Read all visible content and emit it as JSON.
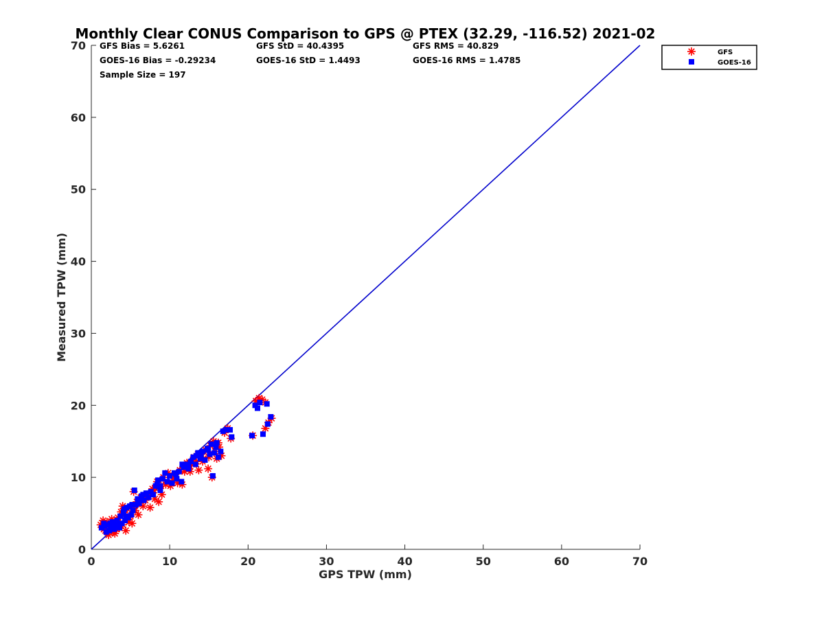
{
  "chart_data": {
    "type": "scatter",
    "title": "Monthly Clear CONUS Comparison to GPS @ PTEX (32.29, -116.52) 2021-02",
    "xlabel": "GPS TPW (mm)",
    "ylabel": "Measured TPW (mm)",
    "xlim": [
      0,
      70
    ],
    "ylim": [
      0,
      70
    ],
    "xticks": [
      0,
      10,
      20,
      30,
      40,
      50,
      60,
      70
    ],
    "yticks": [
      0,
      10,
      20,
      30,
      40,
      50,
      60,
      70
    ],
    "grid": false,
    "legend_position": "top-right outside",
    "stats": {
      "gfs_bias": "GFS Bias = 5.6261",
      "gfs_std": "GFS StD = 40.4395",
      "gfs_rms": "GFS RMS = 40.829",
      "goes_bias": "GOES-16 Bias = -0.29234",
      "goes_std": "GOES-16 StD = 1.4493",
      "goes_rms": "GOES-16 RMS = 1.4785",
      "sample_size": "Sample Size = 197"
    },
    "reference_line": {
      "x": [
        0,
        70
      ],
      "y": [
        0,
        70
      ],
      "color": "#0000cc"
    },
    "series": [
      {
        "name": "GFS",
        "marker": "asterisk",
        "color": "#ff0000",
        "points": [
          [
            1.2,
            3.4
          ],
          [
            1.5,
            4.0
          ],
          [
            1.8,
            2.6
          ],
          [
            2.0,
            3.8
          ],
          [
            2.2,
            2.0
          ],
          [
            2.4,
            3.2
          ],
          [
            2.6,
            4.2
          ],
          [
            2.8,
            2.4
          ],
          [
            3.0,
            3.6
          ],
          [
            3.2,
            2.8
          ],
          [
            3.4,
            4.4
          ],
          [
            3.6,
            3.0
          ],
          [
            3.8,
            5.2
          ],
          [
            4.0,
            3.4
          ],
          [
            4.2,
            4.8
          ],
          [
            4.4,
            2.6
          ],
          [
            4.6,
            5.6
          ],
          [
            4.8,
            3.8
          ],
          [
            5.0,
            4.6
          ],
          [
            5.2,
            3.6
          ],
          [
            5.4,
            8.0
          ],
          [
            5.6,
            5.4
          ],
          [
            5.8,
            6.6
          ],
          [
            6.0,
            4.8
          ],
          [
            6.3,
            7.2
          ],
          [
            6.6,
            6.0
          ],
          [
            6.9,
            6.8
          ],
          [
            7.2,
            7.6
          ],
          [
            7.5,
            5.8
          ],
          [
            7.8,
            8.4
          ],
          [
            8.1,
            7.0
          ],
          [
            8.4,
            9.4
          ],
          [
            8.6,
            6.6
          ],
          [
            8.9,
            8.8
          ],
          [
            9.2,
            10.0
          ],
          [
            9.5,
            9.0
          ],
          [
            9.8,
            10.6
          ],
          [
            10.1,
            8.8
          ],
          [
            10.4,
            9.6
          ],
          [
            10.7,
            10.4
          ],
          [
            11.0,
            9.2
          ],
          [
            11.3,
            11.0
          ],
          [
            11.6,
            9.0
          ],
          [
            11.9,
            10.8
          ],
          [
            12.2,
            12.0
          ],
          [
            12.5,
            11.2
          ],
          [
            12.8,
            11.8
          ],
          [
            13.1,
            12.8
          ],
          [
            13.4,
            12.2
          ],
          [
            13.7,
            11.0
          ],
          [
            14.0,
            13.2
          ],
          [
            14.3,
            12.6
          ],
          [
            14.6,
            13.8
          ],
          [
            14.9,
            11.2
          ],
          [
            15.2,
            14.4
          ],
          [
            15.4,
            10.0
          ],
          [
            15.6,
            15.0
          ],
          [
            15.8,
            13.6
          ],
          [
            16.0,
            12.6
          ],
          [
            16.3,
            14.2
          ],
          [
            16.6,
            13.0
          ],
          [
            17.0,
            16.2
          ],
          [
            17.4,
            16.8
          ],
          [
            17.8,
            15.4
          ],
          [
            20.6,
            15.8
          ],
          [
            21.0,
            20.6
          ],
          [
            21.4,
            21.0
          ],
          [
            21.8,
            20.8
          ],
          [
            22.2,
            16.8
          ],
          [
            22.6,
            17.6
          ],
          [
            23.0,
            18.2
          ],
          [
            22.2,
            20.4
          ],
          [
            1.6,
            2.8
          ],
          [
            2.6,
            3.0
          ],
          [
            3.4,
            3.8
          ],
          [
            4.6,
            4.2
          ],
          [
            5.0,
            5.8
          ],
          [
            6.8,
            7.4
          ],
          [
            9.0,
            7.6
          ],
          [
            10.6,
            10.0
          ],
          [
            12.6,
            10.8
          ],
          [
            14.2,
            12.2
          ],
          [
            15.0,
            12.8
          ],
          [
            16.2,
            14.8
          ],
          [
            3.0,
            2.2
          ],
          [
            4.0,
            6.0
          ],
          [
            6.2,
            6.4
          ],
          [
            8.0,
            8.2
          ],
          [
            11.8,
            11.6
          ],
          [
            13.6,
            13.2
          ]
        ]
      },
      {
        "name": "GOES-16",
        "marker": "square",
        "color": "#0000ff",
        "points": [
          [
            1.3,
            3.0
          ],
          [
            1.6,
            3.6
          ],
          [
            1.9,
            2.4
          ],
          [
            2.1,
            3.4
          ],
          [
            2.3,
            2.6
          ],
          [
            2.5,
            3.0
          ],
          [
            2.7,
            3.8
          ],
          [
            2.9,
            2.8
          ],
          [
            3.1,
            3.2
          ],
          [
            3.3,
            4.0
          ],
          [
            3.5,
            3.4
          ],
          [
            3.7,
            4.6
          ],
          [
            3.9,
            3.6
          ],
          [
            4.1,
            5.2
          ],
          [
            4.3,
            4.0
          ],
          [
            4.5,
            5.8
          ],
          [
            4.7,
            4.4
          ],
          [
            4.9,
            6.0
          ],
          [
            5.1,
            4.8
          ],
          [
            5.3,
            5.4
          ],
          [
            5.5,
            8.2
          ],
          [
            5.7,
            6.2
          ],
          [
            5.9,
            7.0
          ],
          [
            6.1,
            6.4
          ],
          [
            6.4,
            7.4
          ],
          [
            6.7,
            6.8
          ],
          [
            7.0,
            7.8
          ],
          [
            7.3,
            7.2
          ],
          [
            7.6,
            8.0
          ],
          [
            7.9,
            7.6
          ],
          [
            8.2,
            8.8
          ],
          [
            8.5,
            9.6
          ],
          [
            8.8,
            8.2
          ],
          [
            9.1,
            9.8
          ],
          [
            9.4,
            10.6
          ],
          [
            9.7,
            9.4
          ],
          [
            10.0,
            10.2
          ],
          [
            10.3,
            9.2
          ],
          [
            10.6,
            10.6
          ],
          [
            10.9,
            9.8
          ],
          [
            11.2,
            10.8
          ],
          [
            11.5,
            9.4
          ],
          [
            11.8,
            11.4
          ],
          [
            12.1,
            11.8
          ],
          [
            12.4,
            11.6
          ],
          [
            12.7,
            12.2
          ],
          [
            13.0,
            12.8
          ],
          [
            13.3,
            11.8
          ],
          [
            13.6,
            13.4
          ],
          [
            13.9,
            12.6
          ],
          [
            14.2,
            13.6
          ],
          [
            14.5,
            12.4
          ],
          [
            14.8,
            14.0
          ],
          [
            15.1,
            13.2
          ],
          [
            15.3,
            14.6
          ],
          [
            15.5,
            10.2
          ],
          [
            15.7,
            13.4
          ],
          [
            15.9,
            14.2
          ],
          [
            16.2,
            12.8
          ],
          [
            16.5,
            13.6
          ],
          [
            16.8,
            16.4
          ],
          [
            17.3,
            16.6
          ],
          [
            17.7,
            16.6
          ],
          [
            17.9,
            15.6
          ],
          [
            20.5,
            15.8
          ],
          [
            20.9,
            20.0
          ],
          [
            21.2,
            19.6
          ],
          [
            21.5,
            20.4
          ],
          [
            21.9,
            16.0
          ],
          [
            22.4,
            20.2
          ],
          [
            22.5,
            17.4
          ],
          [
            22.9,
            18.4
          ],
          [
            1.7,
            3.2
          ],
          [
            2.4,
            3.6
          ],
          [
            3.2,
            3.6
          ],
          [
            4.4,
            4.6
          ],
          [
            5.2,
            6.2
          ],
          [
            6.6,
            7.6
          ],
          [
            8.8,
            8.8
          ],
          [
            10.8,
            10.4
          ],
          [
            12.4,
            11.2
          ],
          [
            14.0,
            13.0
          ],
          [
            14.9,
            13.8
          ],
          [
            16.0,
            14.8
          ],
          [
            3.6,
            3.0
          ],
          [
            4.2,
            5.6
          ],
          [
            6.0,
            6.8
          ],
          [
            8.4,
            9.0
          ],
          [
            11.6,
            11.8
          ],
          [
            13.4,
            13.0
          ]
        ]
      }
    ]
  }
}
